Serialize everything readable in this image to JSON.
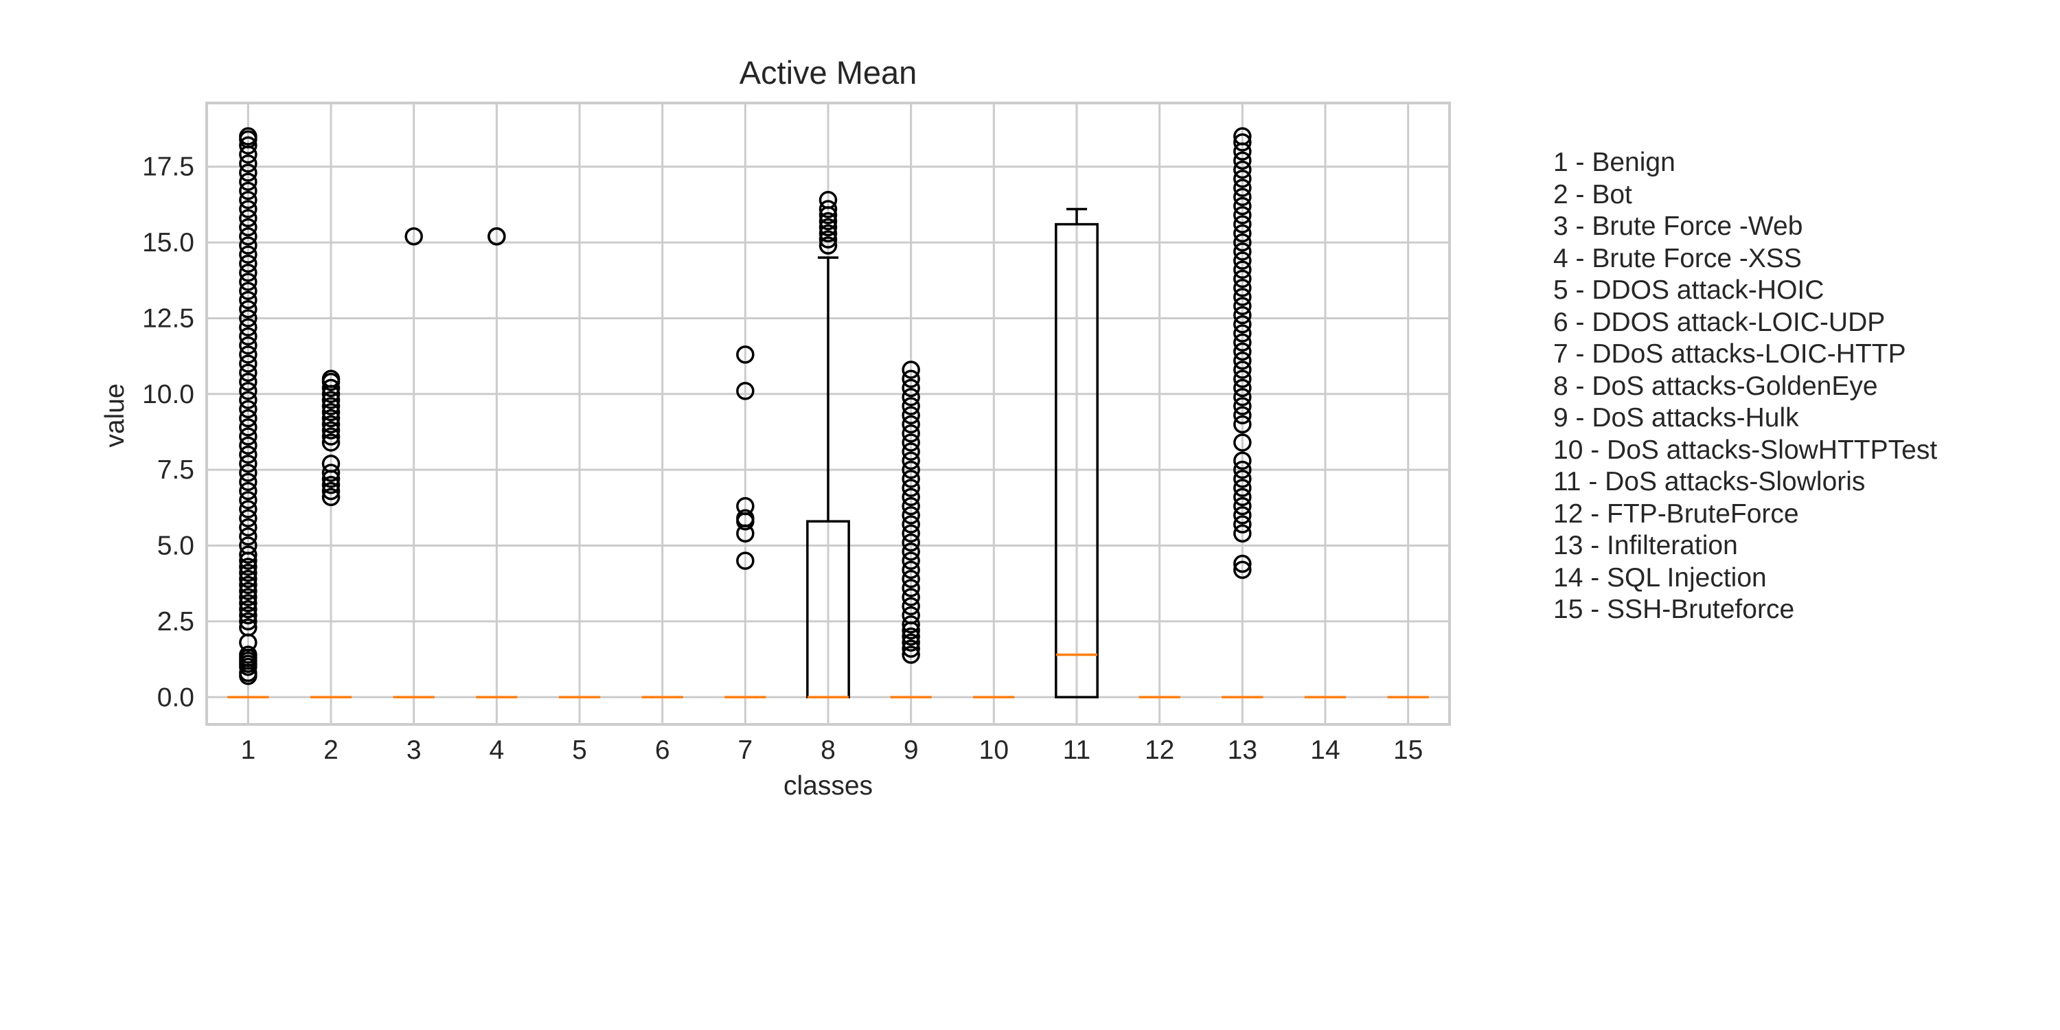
{
  "chart_data": {
    "type": "box",
    "title": "Active Mean",
    "xlabel": "classes",
    "ylabel": "value",
    "ylim": [
      -0.9,
      19.6
    ],
    "yticks": [
      "0.0",
      "2.5",
      "5.0",
      "7.5",
      "10.0",
      "12.5",
      "15.0",
      "17.5"
    ],
    "ytick_values": [
      0,
      2.5,
      5,
      7.5,
      10,
      12.5,
      15,
      17.5
    ],
    "categories": [
      "1",
      "2",
      "3",
      "4",
      "5",
      "6",
      "7",
      "8",
      "9",
      "10",
      "11",
      "12",
      "13",
      "14",
      "15"
    ],
    "grid": true,
    "colors": {
      "box": "#000000",
      "median": "#ff7f0e",
      "grid": "#cccccc",
      "frame": "#cccccc"
    },
    "boxes": [
      {
        "class": "1",
        "q1": 0,
        "median": 0,
        "q3": 0,
        "whisker_low": 0,
        "whisker_high": 0,
        "outliers": [
          0.7,
          0.8,
          1.0,
          1.1,
          1.2,
          1.3,
          1.4,
          1.8,
          2.3,
          2.5,
          2.7,
          2.9,
          3.1,
          3.3,
          3.5,
          3.7,
          3.9,
          4.1,
          4.3,
          4.5,
          4.7,
          5.0,
          5.3,
          5.6,
          5.9,
          6.2,
          6.5,
          6.8,
          7.1,
          7.4,
          7.7,
          8.0,
          8.3,
          8.6,
          8.9,
          9.2,
          9.5,
          9.8,
          10.1,
          10.4,
          10.7,
          11.0,
          11.3,
          11.6,
          11.9,
          12.2,
          12.5,
          12.8,
          13.1,
          13.4,
          13.7,
          14.0,
          14.3,
          14.6,
          14.9,
          15.2,
          15.5,
          15.8,
          16.1,
          16.4,
          16.7,
          17.0,
          17.3,
          17.6,
          17.9,
          18.2,
          18.4,
          18.5
        ]
      },
      {
        "class": "2",
        "q1": 0,
        "median": 0,
        "q3": 0,
        "whisker_low": 0,
        "whisker_high": 0,
        "outliers": [
          6.6,
          6.8,
          7.0,
          7.2,
          7.4,
          7.7,
          8.4,
          8.6,
          8.8,
          9.0,
          9.2,
          9.4,
          9.6,
          9.8,
          10.0,
          10.2,
          10.4,
          10.5
        ]
      },
      {
        "class": "3",
        "q1": 0,
        "median": 0,
        "q3": 0,
        "whisker_low": 0,
        "whisker_high": 0,
        "outliers": [
          15.2
        ]
      },
      {
        "class": "4",
        "q1": 0,
        "median": 0,
        "q3": 0,
        "whisker_low": 0,
        "whisker_high": 0,
        "outliers": [
          15.2,
          15.2
        ]
      },
      {
        "class": "5",
        "q1": 0,
        "median": 0,
        "q3": 0,
        "whisker_low": 0,
        "whisker_high": 0,
        "outliers": []
      },
      {
        "class": "6",
        "q1": 0,
        "median": 0,
        "q3": 0,
        "whisker_low": 0,
        "whisker_high": 0,
        "outliers": []
      },
      {
        "class": "7",
        "q1": 0,
        "median": 0,
        "q3": 0,
        "whisker_low": 0,
        "whisker_high": 0,
        "outliers": [
          4.5,
          5.4,
          5.8,
          5.9,
          6.3,
          10.1,
          11.3
        ]
      },
      {
        "class": "8",
        "q1": 0,
        "median": 0,
        "q3": 5.8,
        "whisker_low": 0,
        "whisker_high": 14.5,
        "outliers": [
          14.9,
          15.1,
          15.3,
          15.5,
          15.7,
          15.9,
          16.1,
          16.4
        ]
      },
      {
        "class": "9",
        "q1": 0,
        "median": 0,
        "q3": 0,
        "whisker_low": 0,
        "whisker_high": 0,
        "outliers": [
          1.4,
          1.6,
          1.8,
          2.0,
          2.2,
          2.4,
          2.7,
          3.0,
          3.3,
          3.6,
          3.9,
          4.2,
          4.5,
          4.8,
          5.1,
          5.4,
          5.7,
          6.0,
          6.3,
          6.6,
          6.9,
          7.2,
          7.5,
          7.8,
          8.1,
          8.4,
          8.7,
          9.0,
          9.3,
          9.6,
          9.9,
          10.2,
          10.5,
          10.8
        ]
      },
      {
        "class": "10",
        "q1": 0,
        "median": 0,
        "q3": 0,
        "whisker_low": 0,
        "whisker_high": 0,
        "outliers": []
      },
      {
        "class": "11",
        "q1": 0,
        "median": 1.4,
        "q3": 15.6,
        "whisker_low": 0,
        "whisker_high": 16.1,
        "outliers": []
      },
      {
        "class": "12",
        "q1": 0,
        "median": 0,
        "q3": 0,
        "whisker_low": 0,
        "whisker_high": 0,
        "outliers": []
      },
      {
        "class": "13",
        "q1": 0,
        "median": 0,
        "q3": 0,
        "whisker_low": 0,
        "whisker_high": 0,
        "outliers": [
          4.2,
          4.4,
          5.4,
          5.7,
          6.0,
          6.3,
          6.6,
          6.9,
          7.2,
          7.5,
          7.8,
          8.4,
          9.0,
          9.3,
          9.6,
          9.9,
          10.2,
          10.5,
          10.8,
          11.1,
          11.4,
          11.7,
          12.0,
          12.3,
          12.6,
          12.9,
          13.2,
          13.5,
          13.8,
          14.1,
          14.4,
          14.7,
          15.0,
          15.3,
          15.6,
          15.9,
          16.2,
          16.5,
          16.8,
          17.1,
          17.4,
          17.7,
          18.0,
          18.3,
          18.5
        ]
      },
      {
        "class": "14",
        "q1": 0,
        "median": 0,
        "q3": 0,
        "whisker_low": 0,
        "whisker_high": 0,
        "outliers": []
      },
      {
        "class": "15",
        "q1": 0,
        "median": 0,
        "q3": 0,
        "whisker_low": 0,
        "whisker_high": 0,
        "outliers": []
      }
    ],
    "legend_placement": "right",
    "legend": [
      "1 - Benign",
      "2 - Bot",
      "3 - Brute Force -Web",
      "4 - Brute Force -XSS",
      "5 - DDOS attack-HOIC",
      "6 - DDOS attack-LOIC-UDP",
      "7 - DDoS attacks-LOIC-HTTP",
      "8 - DoS attacks-GoldenEye",
      "9 - DoS attacks-Hulk",
      "10 - DoS attacks-SlowHTTPTest",
      "11 - DoS attacks-Slowloris",
      "12 - FTP-BruteForce",
      "13 - Infilteration",
      "14 - SQL Injection",
      "15 - SSH-Bruteforce"
    ]
  }
}
